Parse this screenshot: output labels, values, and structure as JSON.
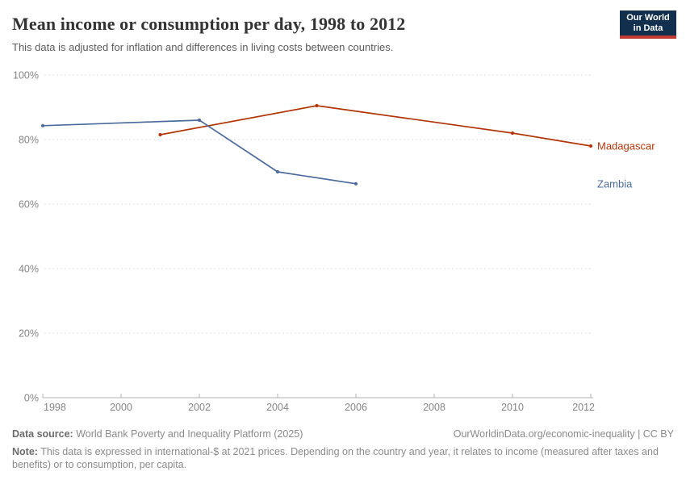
{
  "header": {
    "title": "Mean income or consumption per day, 1998 to 2012",
    "subtitle": "This data is adjusted for inflation and differences in living costs between countries.",
    "logo": {
      "line1": "Our World",
      "line2": "in Data",
      "bg_color": "#12304E",
      "accent_color": "#C23B33"
    }
  },
  "chart_data": {
    "type": "line",
    "title": "Mean income or consumption per day, 1998 to 2012",
    "xlabel": "",
    "ylabel": "",
    "grid": true,
    "legend_position": "right-end-labels",
    "x": {
      "range": [
        1998,
        2012
      ],
      "ticks": [
        1998,
        2000,
        2002,
        2004,
        2006,
        2008,
        2010,
        2012
      ],
      "tick_labels": [
        "1998",
        "2000",
        "2002",
        "2004",
        "2006",
        "2008",
        "2010",
        "2012"
      ]
    },
    "y": {
      "range": [
        0,
        100
      ],
      "unit": "%",
      "tick_values": [
        0,
        20,
        40,
        60,
        80,
        100
      ],
      "tick_labels": [
        "0%",
        "20%",
        "40%",
        "60%",
        "80%",
        "100%"
      ]
    },
    "series": [
      {
        "name": "Madagascar",
        "color": "#B13507",
        "points": [
          {
            "x": 2001,
            "y": 81.5
          },
          {
            "x": 2005,
            "y": 90.5
          },
          {
            "x": 2010,
            "y": 82
          },
          {
            "x": 2012,
            "y": 78
          }
        ]
      },
      {
        "name": "Zambia",
        "color": "#4C6A9C",
        "points": [
          {
            "x": 1998,
            "y": 84.3
          },
          {
            "x": 2002,
            "y": 86
          },
          {
            "x": 2004,
            "y": 70
          },
          {
            "x": 2006,
            "y": 66.3
          }
        ]
      }
    ]
  },
  "footer": {
    "data_source_label": "Data source:",
    "data_source": " World Bank Poverty and Inequality Platform (2025)",
    "attribution": "OurWorldinData.org/economic-inequality | CC BY",
    "note_label": "Note:",
    "note": " This data is expressed in international-$ at 2021 prices. Depending on the country and year, it relates to income (measured after taxes and benefits) or to consumption, per capita."
  }
}
